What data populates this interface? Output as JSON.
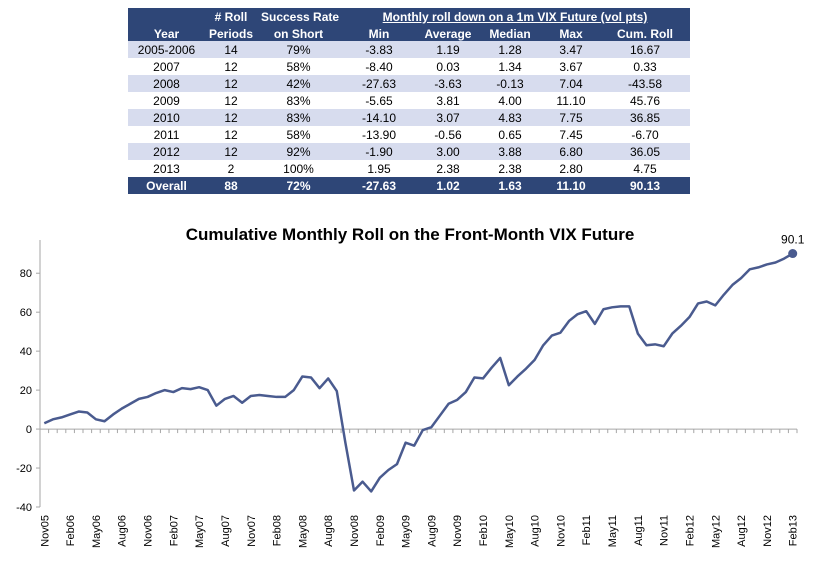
{
  "table": {
    "group_header": "Monthly roll down on a 1m VIX Future (vol pts)",
    "columns": [
      [
        "Year"
      ],
      [
        "# Roll",
        "Periods"
      ],
      [
        "Success Rate",
        "on Short"
      ],
      [
        "Min"
      ],
      [
        "Average"
      ],
      [
        "Median"
      ],
      [
        "Max"
      ],
      [
        "Cum. Roll"
      ]
    ],
    "rows": [
      [
        "2005-2006",
        "14",
        "79%",
        "-3.83",
        "1.19",
        "1.28",
        "3.47",
        "16.67"
      ],
      [
        "2007",
        "12",
        "58%",
        "-8.40",
        "0.03",
        "1.34",
        "3.67",
        "0.33"
      ],
      [
        "2008",
        "12",
        "42%",
        "-27.63",
        "-3.63",
        "-0.13",
        "7.04",
        "-43.58"
      ],
      [
        "2009",
        "12",
        "83%",
        "-5.65",
        "3.81",
        "4.00",
        "11.10",
        "45.76"
      ],
      [
        "2010",
        "12",
        "83%",
        "-14.10",
        "3.07",
        "4.83",
        "7.75",
        "36.85"
      ],
      [
        "2011",
        "12",
        "58%",
        "-13.90",
        "-0.56",
        "0.65",
        "7.45",
        "-6.70"
      ],
      [
        "2012",
        "12",
        "92%",
        "-1.90",
        "3.00",
        "3.88",
        "6.80",
        "36.05"
      ],
      [
        "2013",
        "2",
        "100%",
        "1.95",
        "2.38",
        "2.38",
        "2.80",
        "4.75"
      ]
    ],
    "total": [
      "Overall",
      "88",
      "72%",
      "-27.63",
      "1.02",
      "1.63",
      "11.10",
      "90.13"
    ]
  },
  "chart_data": {
    "type": "line",
    "title": "Cumulative Monthly Roll on the Front-Month VIX Future",
    "categories": [
      "Nov05",
      null,
      null,
      "Feb06",
      null,
      null,
      "May06",
      null,
      null,
      "Aug06",
      null,
      null,
      "Nov06",
      null,
      null,
      "Feb07",
      null,
      null,
      "May07",
      null,
      null,
      "Aug07",
      null,
      null,
      "Nov07",
      null,
      null,
      "Feb08",
      null,
      null,
      "May08",
      null,
      null,
      "Aug08",
      null,
      null,
      "Nov08",
      null,
      null,
      "Feb09",
      null,
      null,
      "May09",
      null,
      null,
      "Aug09",
      null,
      null,
      "Nov09",
      null,
      null,
      "Feb10",
      null,
      null,
      "May10",
      null,
      null,
      "Aug10",
      null,
      null,
      "Nov10",
      null,
      null,
      "Feb11",
      null,
      null,
      "May11",
      null,
      null,
      "Aug11",
      null,
      null,
      "Nov11",
      null,
      null,
      "Feb12",
      null,
      null,
      "May12",
      null,
      null,
      "Aug12",
      null,
      null,
      "Nov12",
      null,
      null,
      "Feb13"
    ],
    "series": [
      {
        "color": "#4a5b8f",
        "values": [
          3,
          5,
          6,
          7.5,
          9,
          8.5,
          5,
          4,
          7.5,
          10.5,
          13,
          15.5,
          16.5,
          18.5,
          20,
          19,
          21,
          20.5,
          21.5,
          20,
          12,
          15.5,
          17,
          13.5,
          17,
          17.5,
          17,
          16.5,
          16.5,
          20,
          27,
          26.5,
          21,
          26,
          19.5,
          -7,
          -31.5,
          -27,
          -32,
          -25,
          -21,
          -18,
          -7,
          -8.5,
          -0.5,
          1,
          7,
          13,
          15,
          19,
          26.5,
          26,
          31.5,
          36.5,
          22.5,
          27,
          31,
          35.5,
          43,
          48,
          49.5,
          55.5,
          59,
          60.5,
          54,
          61.5,
          62.5,
          63,
          63,
          49,
          43,
          43.5,
          42.5,
          49,
          53,
          57.5,
          64.5,
          65.5,
          63.5,
          69,
          74,
          77.5,
          82,
          83,
          84.5,
          85.5,
          87.5,
          90.1
        ],
        "value_labels": [
          null,
          null,
          null,
          null,
          null,
          null,
          null,
          null,
          null,
          null,
          null,
          null,
          null,
          null,
          null,
          null,
          null,
          null,
          null,
          null,
          null,
          null,
          null,
          null,
          null,
          null,
          null,
          null,
          null,
          null,
          null,
          null,
          null,
          null,
          null,
          null,
          null,
          null,
          null,
          null,
          null,
          null,
          null,
          null,
          null,
          null,
          null,
          null,
          null,
          null,
          null,
          null,
          null,
          null,
          null,
          null,
          null,
          null,
          null,
          null,
          null,
          null,
          null,
          null,
          null,
          null,
          null,
          null,
          null,
          null,
          null,
          null,
          null,
          null,
          null,
          null,
          null,
          null,
          null,
          null,
          null,
          null,
          null,
          null,
          null,
          null,
          null,
          "90.1"
        ]
      }
    ],
    "ylim": [
      -40,
      95
    ],
    "yticks": [
      -40,
      -20,
      0,
      20,
      40,
      60,
      80
    ],
    "grid": false
  }
}
